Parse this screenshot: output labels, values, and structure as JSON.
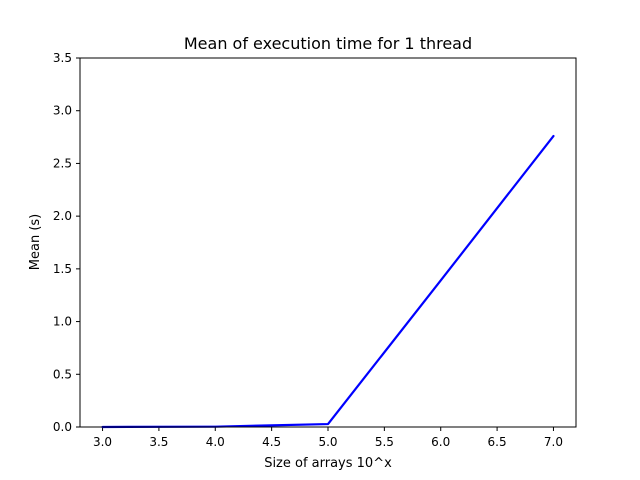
{
  "chart_data": {
    "type": "line",
    "title": "Mean of execution time for 1 thread",
    "xlabel": "Size of arrays 10^x",
    "ylabel": "Mean (s)",
    "xlim": [
      2.8,
      7.2
    ],
    "ylim": [
      0.0,
      3.5
    ],
    "xticks": [
      3.0,
      3.5,
      4.0,
      4.5,
      5.0,
      5.5,
      6.0,
      6.5,
      7.0
    ],
    "xtick_labels": [
      "3.0",
      "3.5",
      "4.0",
      "4.5",
      "5.0",
      "5.5",
      "6.0",
      "6.5",
      "7.0"
    ],
    "yticks": [
      0.0,
      0.5,
      1.0,
      1.5,
      2.0,
      2.5,
      3.0,
      3.5
    ],
    "ytick_labels": [
      "0.0",
      "0.5",
      "1.0",
      "1.5",
      "2.0",
      "2.5",
      "3.0",
      "3.5"
    ],
    "grid": false,
    "legend": "none",
    "series": [
      {
        "color": "#0000ff",
        "x": [
          3,
          4,
          5,
          6,
          7
        ],
        "y": [
          0.0003,
          0.003,
          0.028,
          1.39,
          2.76
        ]
      }
    ]
  }
}
